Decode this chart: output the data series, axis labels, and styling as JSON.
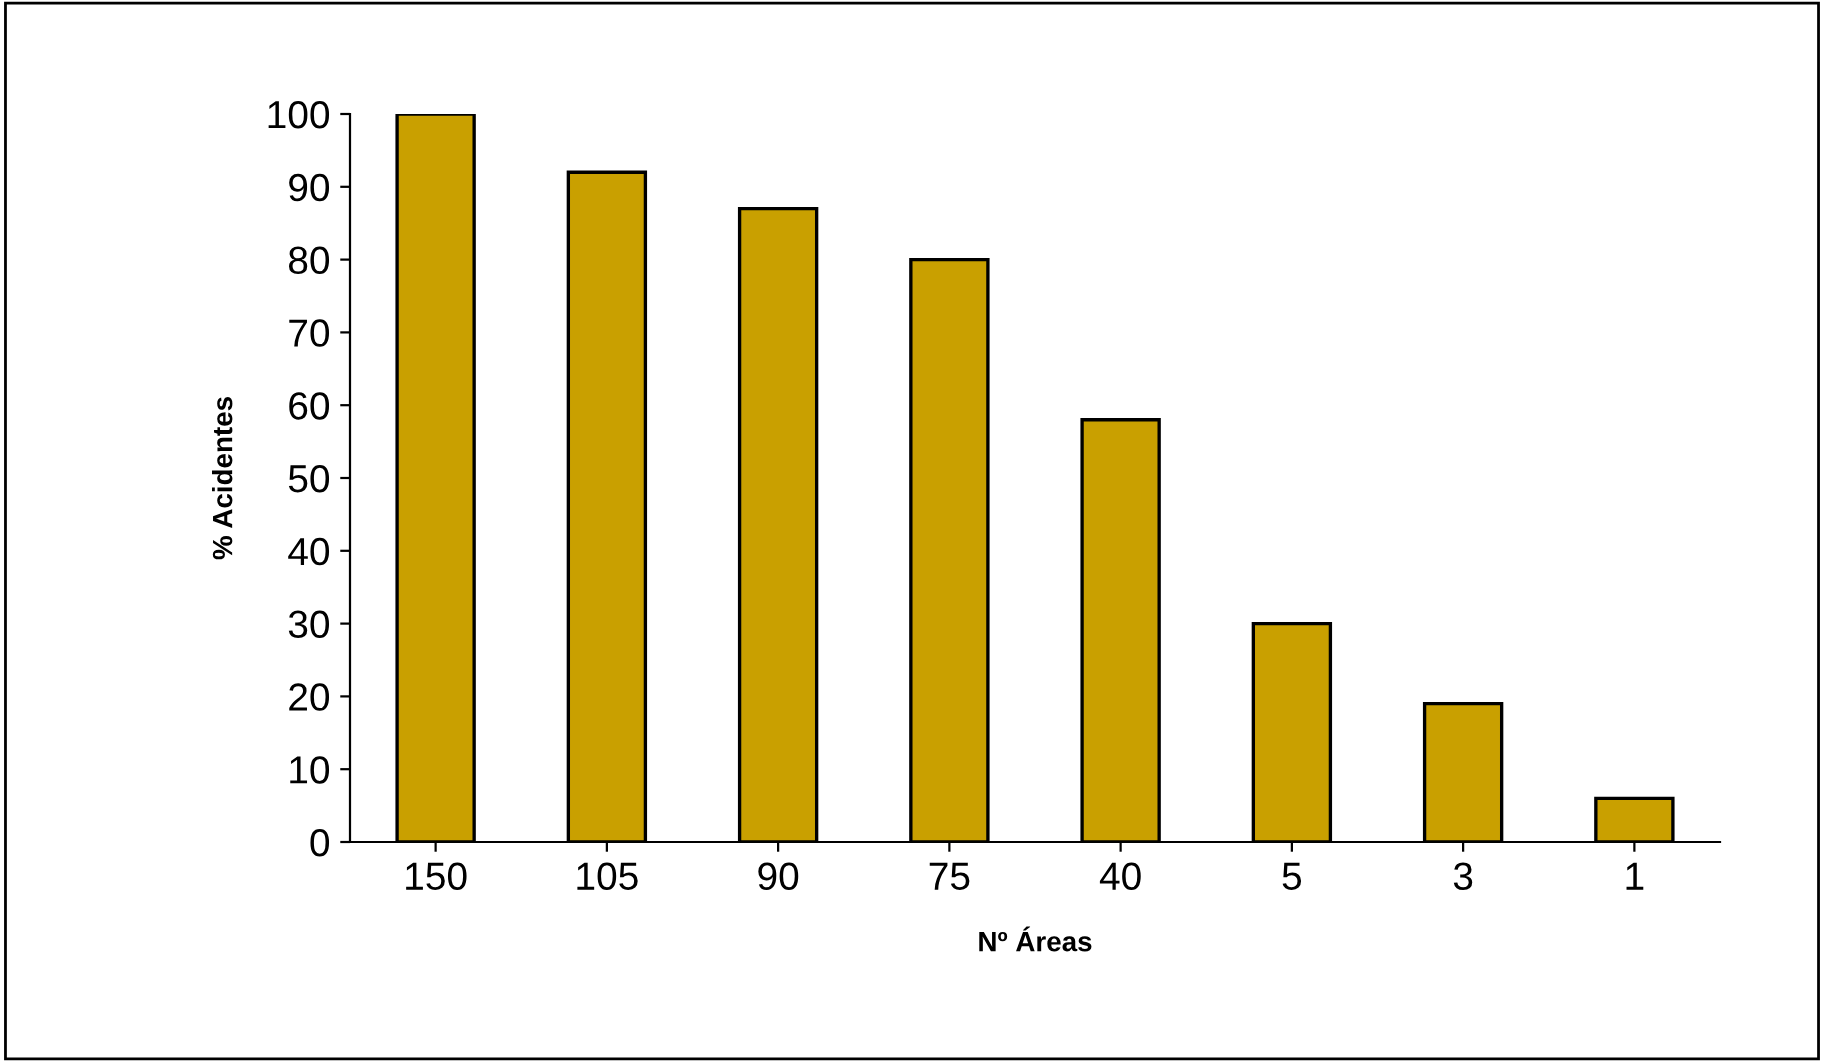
{
  "chart_data": {
    "type": "bar",
    "xlabel": "Nº Áreas",
    "ylabel": "% Acidentes",
    "categories": [
      "150",
      "105",
      "90",
      "75",
      "40",
      "5",
      "3",
      "1"
    ],
    "values": [
      100,
      92,
      87,
      80,
      58,
      30,
      19,
      6
    ],
    "color": "#c9a000",
    "ylim": [
      0,
      100
    ],
    "yticks": [
      0,
      10,
      20,
      30,
      40,
      50,
      60,
      70,
      80,
      90,
      100
    ],
    "grid": false
  }
}
